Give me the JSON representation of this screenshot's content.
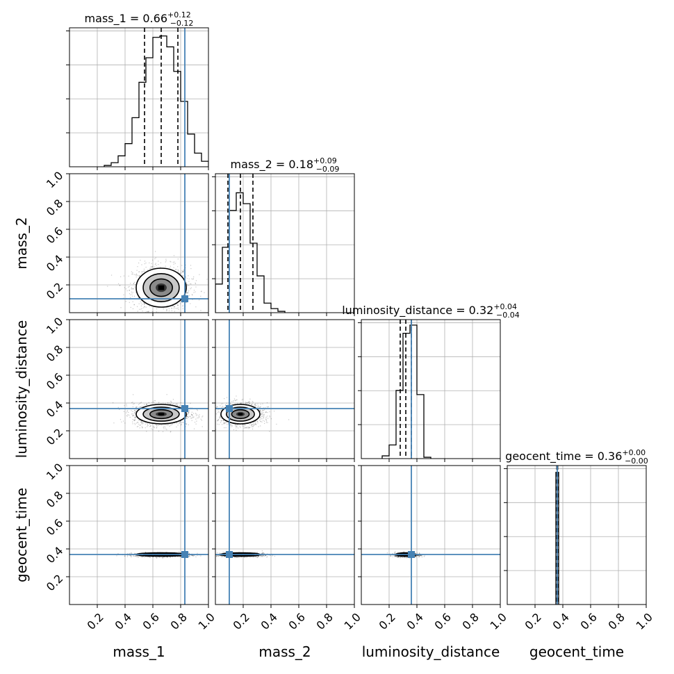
{
  "chart_data": {
    "type": "corner",
    "parameters": [
      {
        "name": "mass_1",
        "median": 0.66,
        "plus": 0.12,
        "minus": 0.12,
        "title_main": "mass_1 = 0.66",
        "title_sup": "+0.12",
        "title_sub": "−0.12",
        "range": [
          0,
          1
        ],
        "truth": 0.83,
        "quantiles": [
          0.54,
          0.66,
          0.78
        ],
        "hist": {
          "edges": [
            0.25,
            0.3,
            0.35,
            0.4,
            0.45,
            0.5,
            0.55,
            0.6,
            0.65,
            0.7,
            0.75,
            0.8,
            0.85,
            0.9,
            0.95,
            1.0
          ],
          "values": [
            0.01,
            0.03,
            0.08,
            0.17,
            0.36,
            0.62,
            0.8,
            0.95,
            0.96,
            0.88,
            0.7,
            0.48,
            0.24,
            0.1,
            0.04
          ]
        }
      },
      {
        "name": "mass_2",
        "median": 0.18,
        "plus": 0.09,
        "minus": 0.09,
        "title_main": "mass_2 = 0.18",
        "title_sup": "+0.09",
        "title_sub": "−0.09",
        "range": [
          0,
          1
        ],
        "truth": 0.1,
        "quantiles": [
          0.09,
          0.18,
          0.27
        ],
        "hist": {
          "edges": [
            0.0,
            0.05,
            0.1,
            0.15,
            0.2,
            0.25,
            0.3,
            0.35,
            0.4,
            0.45,
            0.5
          ],
          "values": [
            0.21,
            0.48,
            0.75,
            0.88,
            0.8,
            0.51,
            0.27,
            0.07,
            0.03,
            0.01
          ]
        }
      },
      {
        "name": "luminosity_distance",
        "median": 0.32,
        "plus": 0.04,
        "minus": 0.04,
        "title_main": "luminosity_distance = 0.32",
        "title_sup": "+0.04",
        "title_sub": "−0.04",
        "range": [
          0,
          1
        ],
        "truth": 0.36,
        "quantiles": [
          0.28,
          0.32,
          0.36
        ],
        "hist": {
          "edges": [
            0.15,
            0.2,
            0.25,
            0.3,
            0.35,
            0.4,
            0.45,
            0.5
          ],
          "values": [
            0.02,
            0.1,
            0.5,
            0.92,
            0.98,
            0.47,
            0.01
          ]
        }
      },
      {
        "name": "geocent_time",
        "median": 0.36,
        "plus": 0.0,
        "minus": 0.0,
        "title_main": "geocent_time = 0.36",
        "title_sup": "+0.00",
        "title_sub": "−0.00",
        "range": [
          0,
          1
        ],
        "truth": 0.36,
        "quantiles": [
          0.357,
          0.36,
          0.363
        ],
        "hist": {
          "edges": [
            0.35,
            0.37,
            0.39
          ],
          "values": [
            0.97,
            0.0
          ]
        }
      }
    ],
    "tick_labels": [
      "0.2",
      "0.4",
      "0.6",
      "0.8",
      "1.0"
    ],
    "ticks": [
      0.2,
      0.4,
      0.6,
      0.8,
      1.0
    ],
    "grid": true,
    "colors": {
      "truth": "#4682b4",
      "hist": "#000000",
      "grid": "#b0b0b0"
    }
  }
}
